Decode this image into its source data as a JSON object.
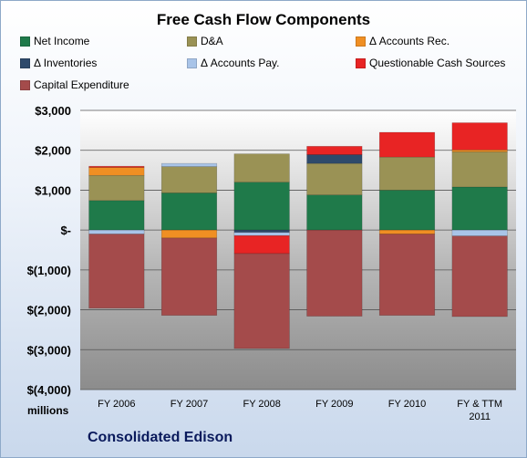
{
  "chart_data": {
    "type": "bar",
    "stacked": true,
    "title": "Free Cash Flow Components",
    "company": "Consolidated Edison",
    "units_label": "millions",
    "categories": [
      "FY 2006",
      "FY 2007",
      "FY 2008",
      "FY 2009",
      "FY 2010",
      "FY & TTM\n2011"
    ],
    "ylim": [
      -4000,
      3000
    ],
    "yticks": [
      3000,
      2000,
      1000,
      0,
      -1000,
      -2000,
      -3000,
      -4000
    ],
    "ytick_labels": [
      "$3,000",
      "$2,000",
      "$1,000",
      "$-",
      "$(1,000)",
      "$(2,000)",
      "$(3,000)",
      "$(4,000)"
    ],
    "grid": true,
    "legend_placement": "top",
    "series": [
      {
        "name": "Net Income",
        "color": "#1f7a4a",
        "values": [
          740,
          930,
          1200,
          880,
          1000,
          1080
        ]
      },
      {
        "name": "D&A",
        "color": "#9a9255",
        "values": [
          630,
          660,
          710,
          790,
          830,
          880
        ]
      },
      {
        "name": "Δ Accounts Rec.",
        "color": "#f08f23",
        "values": [
          200,
          -200,
          0,
          0,
          -100,
          50
        ]
      },
      {
        "name": "Δ Inventories",
        "color": "#2e4a6b",
        "values": [
          0,
          0,
          -60,
          220,
          0,
          0
        ]
      },
      {
        "name": "Δ Accounts Pay.",
        "color": "#a9c4e8",
        "values": [
          -100,
          80,
          -80,
          0,
          0,
          -150
        ]
      },
      {
        "name": "Questionable Cash Sources",
        "color": "#e82424",
        "values": [
          30,
          0,
          -450,
          210,
          620,
          680
        ]
      },
      {
        "name": "Capital Expenditure",
        "color": "#a44b4b",
        "values": [
          -1860,
          -1940,
          -2380,
          -2160,
          -2040,
          -2020
        ]
      }
    ]
  }
}
